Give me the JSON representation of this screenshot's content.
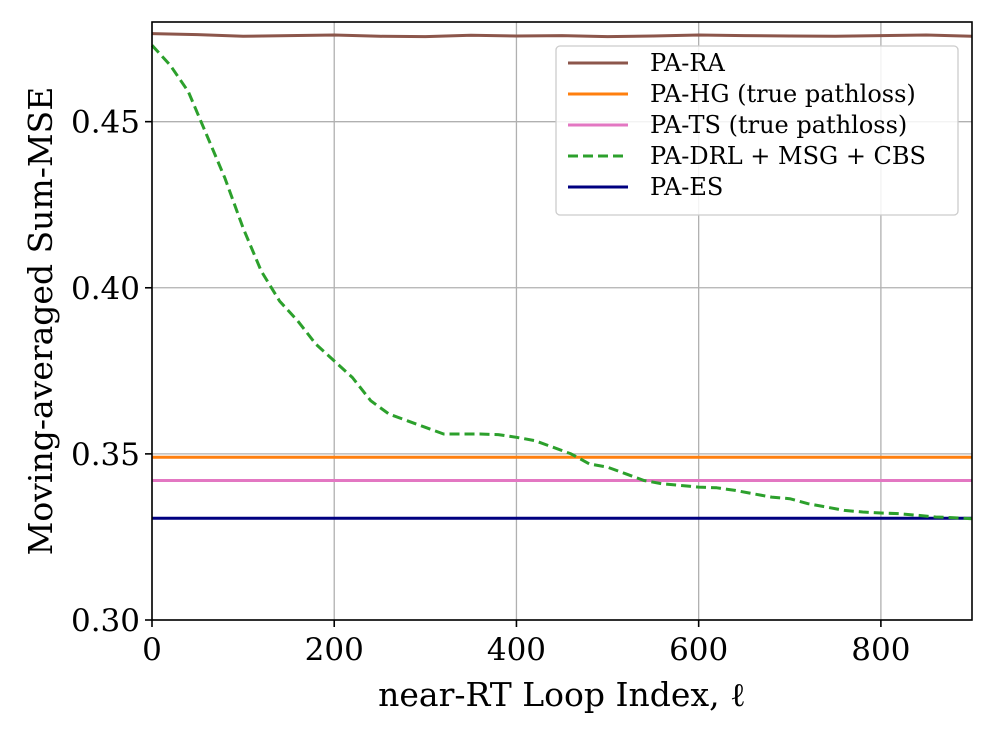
{
  "chart_data": {
    "type": "line",
    "title": "",
    "xlabel": "near-RT Loop Index, ℓ",
    "ylabel": "Moving-averaged Sum-MSE",
    "xlim": [
      0,
      900
    ],
    "ylim": [
      0.3,
      0.48
    ],
    "xticks": [
      0,
      200,
      400,
      600,
      800
    ],
    "xtick_labels": [
      "0",
      "200",
      "400",
      "600",
      "800"
    ],
    "yticks": [
      0.3,
      0.35,
      0.4,
      0.45
    ],
    "ytick_labels": [
      "0.30",
      "0.35",
      "0.40",
      "0.45"
    ],
    "grid": true,
    "legend_position": "top-right",
    "series": [
      {
        "name": "PA-RA",
        "color": "#8c564b",
        "style": "solid",
        "x": [
          0,
          50,
          100,
          150,
          200,
          250,
          300,
          350,
          400,
          450,
          500,
          550,
          600,
          650,
          700,
          750,
          800,
          850,
          900
        ],
        "y": [
          0.4765,
          0.4762,
          0.4757,
          0.4759,
          0.4761,
          0.4757,
          0.4756,
          0.476,
          0.4758,
          0.4759,
          0.4756,
          0.4758,
          0.4761,
          0.4759,
          0.4758,
          0.4757,
          0.4759,
          0.4761,
          0.4757
        ]
      },
      {
        "name": "PA-HG (true pathloss)",
        "color": "#ff7f0e",
        "style": "solid",
        "x": [
          0,
          900
        ],
        "y": [
          0.349,
          0.349
        ]
      },
      {
        "name": "PA-TS (true pathloss)",
        "color": "#e377c2",
        "style": "solid",
        "x": [
          0,
          900
        ],
        "y": [
          0.342,
          0.342
        ]
      },
      {
        "name": "PA-DRL + MSG + CBS",
        "color": "#2ca02c",
        "style": "dashed",
        "x": [
          0,
          10,
          20,
          40,
          60,
          80,
          100,
          120,
          140,
          160,
          180,
          200,
          220,
          240,
          260,
          280,
          300,
          320,
          340,
          360,
          380,
          400,
          420,
          440,
          460,
          480,
          500,
          520,
          540,
          560,
          580,
          600,
          620,
          640,
          660,
          680,
          700,
          720,
          740,
          760,
          780,
          800,
          820,
          840,
          860,
          880,
          900
        ],
        "y": [
          0.473,
          0.47,
          0.467,
          0.459,
          0.446,
          0.433,
          0.418,
          0.405,
          0.396,
          0.39,
          0.383,
          0.378,
          0.373,
          0.366,
          0.362,
          0.36,
          0.358,
          0.356,
          0.356,
          0.356,
          0.3558,
          0.355,
          0.354,
          0.352,
          0.35,
          0.347,
          0.346,
          0.344,
          0.342,
          0.341,
          0.3405,
          0.34,
          0.3398,
          0.339,
          0.338,
          0.337,
          0.3365,
          0.335,
          0.334,
          0.333,
          0.3325,
          0.3322,
          0.332,
          0.3315,
          0.331,
          0.3308,
          0.3305
        ]
      },
      {
        "name": "PA-ES",
        "color": "#000080",
        "style": "solid",
        "x": [
          0,
          900
        ],
        "y": [
          0.3306,
          0.3306
        ]
      }
    ]
  }
}
